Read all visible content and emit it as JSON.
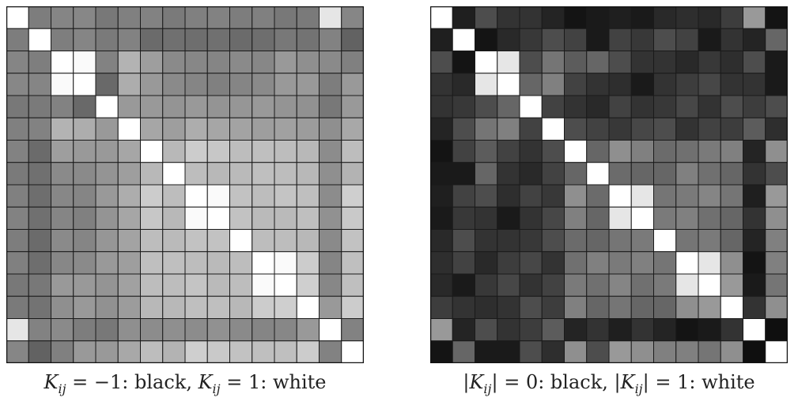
{
  "chart_data": [
    {
      "type": "heatmap",
      "n": 16,
      "color_scale": "K_ij = -1 black, K_ij = 1 white",
      "vmin": -1,
      "vmax": 1,
      "caption": {
        "part1_symbol": "K",
        "part1_sub": "ij",
        "part1_value": " = −1: black, ",
        "part2_symbol": "K",
        "part2_sub": "ij",
        "part2_value": " = 1: white"
      },
      "matrix": [
        [
          1.0,
          -0.02,
          0.04,
          0.06,
          -0.06,
          0.0,
          0.02,
          -0.04,
          0.0,
          0.02,
          -0.02,
          0.0,
          -0.06,
          -0.04,
          0.8,
          0.05
        ],
        [
          -0.02,
          1.0,
          -0.01,
          0.04,
          -0.04,
          0.02,
          -0.16,
          -0.12,
          -0.14,
          -0.12,
          -0.16,
          -0.14,
          -0.06,
          -0.1,
          0.02,
          -0.23
        ],
        [
          0.04,
          -0.01,
          1.0,
          0.96,
          0.02,
          0.4,
          0.24,
          0.08,
          0.06,
          0.04,
          0.08,
          0.06,
          0.2,
          0.12,
          0.08,
          0.0
        ],
        [
          0.06,
          0.04,
          0.96,
          1.0,
          -0.18,
          0.36,
          0.2,
          0.08,
          0.04,
          0.0,
          0.04,
          0.08,
          0.2,
          0.2,
          -0.02,
          0.2
        ],
        [
          -0.06,
          -0.04,
          0.02,
          -0.18,
          1.0,
          0.2,
          0.2,
          0.16,
          0.2,
          0.16,
          0.18,
          0.2,
          0.16,
          0.14,
          -0.06,
          0.2
        ],
        [
          0.0,
          0.02,
          0.4,
          0.36,
          0.2,
          1.0,
          0.3,
          0.24,
          0.36,
          0.3,
          0.28,
          0.24,
          0.26,
          0.22,
          0.12,
          0.32
        ],
        [
          0.02,
          -0.16,
          0.24,
          0.2,
          0.2,
          0.3,
          1.0,
          0.44,
          0.6,
          0.56,
          0.48,
          0.5,
          0.48,
          0.44,
          0.1,
          0.48
        ],
        [
          -0.04,
          -0.12,
          0.08,
          0.08,
          0.16,
          0.24,
          0.44,
          1.0,
          0.48,
          0.44,
          0.46,
          0.5,
          0.48,
          0.44,
          0.12,
          0.4
        ],
        [
          0.0,
          -0.14,
          0.06,
          0.04,
          0.2,
          0.36,
          0.6,
          0.48,
          1.0,
          0.96,
          0.52,
          0.48,
          0.54,
          0.5,
          0.1,
          0.62
        ],
        [
          0.02,
          -0.12,
          0.04,
          0.0,
          0.16,
          0.3,
          0.56,
          0.44,
          0.96,
          1.0,
          0.52,
          0.46,
          0.46,
          0.5,
          0.14,
          0.58
        ],
        [
          -0.02,
          -0.16,
          0.08,
          0.04,
          0.18,
          0.28,
          0.48,
          0.46,
          0.52,
          0.52,
          1.0,
          0.48,
          0.48,
          0.44,
          0.08,
          0.52
        ],
        [
          0.0,
          -0.14,
          0.06,
          0.08,
          0.2,
          0.24,
          0.5,
          0.5,
          0.48,
          0.46,
          0.48,
          1.0,
          0.96,
          0.6,
          0.04,
          0.5
        ],
        [
          -0.06,
          -0.06,
          0.2,
          0.2,
          0.16,
          0.26,
          0.48,
          0.48,
          0.54,
          0.46,
          0.48,
          0.96,
          1.0,
          0.62,
          0.06,
          0.5
        ],
        [
          -0.04,
          -0.1,
          0.12,
          0.2,
          0.14,
          0.22,
          0.44,
          0.44,
          0.5,
          0.5,
          0.44,
          0.6,
          0.62,
          1.0,
          0.2,
          0.6
        ],
        [
          0.8,
          0.02,
          0.08,
          -0.02,
          -0.06,
          0.12,
          0.1,
          0.12,
          0.1,
          0.14,
          0.08,
          0.04,
          0.06,
          0.2,
          1.0,
          0.02
        ],
        [
          0.05,
          -0.23,
          0.0,
          0.2,
          0.2,
          0.32,
          0.48,
          0.4,
          0.62,
          0.58,
          0.52,
          0.5,
          0.5,
          0.6,
          0.02,
          1.0
        ]
      ]
    },
    {
      "type": "heatmap",
      "n": 16,
      "color_scale": "|K_ij| = 0 black, |K_ij| = 1 white",
      "vmin": 0,
      "vmax": 1,
      "caption": {
        "part1_symbol": "K",
        "part1_sub": "ij",
        "part1_value": " = 0: black, ",
        "part2_symbol": "K",
        "part2_sub": "ij",
        "part2_value": " = 1: white"
      },
      "matrix": [
        [
          1.0,
          0.12,
          0.3,
          0.2,
          0.2,
          0.14,
          0.08,
          0.1,
          0.12,
          0.1,
          0.16,
          0.18,
          0.16,
          0.24,
          0.6,
          0.08
        ],
        [
          0.12,
          1.0,
          0.08,
          0.16,
          0.22,
          0.3,
          0.26,
          0.1,
          0.26,
          0.22,
          0.3,
          0.26,
          0.1,
          0.2,
          0.14,
          0.4
        ],
        [
          0.3,
          0.08,
          1.0,
          0.9,
          0.3,
          0.46,
          0.36,
          0.4,
          0.3,
          0.2,
          0.2,
          0.16,
          0.22,
          0.18,
          0.3,
          0.1
        ],
        [
          0.2,
          0.16,
          0.9,
          1.0,
          0.4,
          0.5,
          0.26,
          0.2,
          0.18,
          0.1,
          0.2,
          0.24,
          0.28,
          0.2,
          0.2,
          0.1
        ],
        [
          0.2,
          0.22,
          0.3,
          0.4,
          1.0,
          0.26,
          0.2,
          0.16,
          0.26,
          0.2,
          0.22,
          0.28,
          0.2,
          0.3,
          0.24,
          0.3
        ],
        [
          0.14,
          0.3,
          0.46,
          0.5,
          0.26,
          1.0,
          0.3,
          0.26,
          0.22,
          0.28,
          0.3,
          0.2,
          0.26,
          0.24,
          0.36,
          0.18
        ],
        [
          0.08,
          0.26,
          0.36,
          0.26,
          0.2,
          0.3,
          1.0,
          0.4,
          0.56,
          0.5,
          0.42,
          0.44,
          0.48,
          0.5,
          0.14,
          0.56
        ],
        [
          0.1,
          0.1,
          0.4,
          0.2,
          0.16,
          0.26,
          0.4,
          1.0,
          0.42,
          0.4,
          0.4,
          0.5,
          0.44,
          0.4,
          0.2,
          0.3
        ],
        [
          0.12,
          0.26,
          0.3,
          0.18,
          0.26,
          0.22,
          0.56,
          0.42,
          1.0,
          0.9,
          0.46,
          0.48,
          0.52,
          0.46,
          0.12,
          0.6
        ],
        [
          0.1,
          0.22,
          0.2,
          0.1,
          0.2,
          0.28,
          0.5,
          0.4,
          0.9,
          1.0,
          0.48,
          0.5,
          0.44,
          0.4,
          0.2,
          0.56
        ],
        [
          0.16,
          0.3,
          0.2,
          0.2,
          0.22,
          0.3,
          0.42,
          0.4,
          0.46,
          0.48,
          1.0,
          0.46,
          0.48,
          0.4,
          0.14,
          0.5
        ],
        [
          0.18,
          0.26,
          0.16,
          0.24,
          0.28,
          0.2,
          0.44,
          0.5,
          0.48,
          0.5,
          0.46,
          1.0,
          0.9,
          0.56,
          0.08,
          0.5
        ],
        [
          0.16,
          0.1,
          0.22,
          0.28,
          0.2,
          0.26,
          0.48,
          0.44,
          0.52,
          0.44,
          0.48,
          0.9,
          1.0,
          0.6,
          0.1,
          0.46
        ],
        [
          0.24,
          0.2,
          0.18,
          0.2,
          0.3,
          0.24,
          0.5,
          0.4,
          0.46,
          0.4,
          0.4,
          0.56,
          0.6,
          1.0,
          0.2,
          0.56
        ],
        [
          0.6,
          0.14,
          0.3,
          0.2,
          0.24,
          0.36,
          0.14,
          0.2,
          0.12,
          0.2,
          0.14,
          0.08,
          0.1,
          0.2,
          1.0,
          0.06
        ],
        [
          0.08,
          0.4,
          0.1,
          0.1,
          0.3,
          0.18,
          0.56,
          0.3,
          0.6,
          0.56,
          0.5,
          0.5,
          0.46,
          0.56,
          0.06,
          1.0
        ]
      ]
    }
  ]
}
